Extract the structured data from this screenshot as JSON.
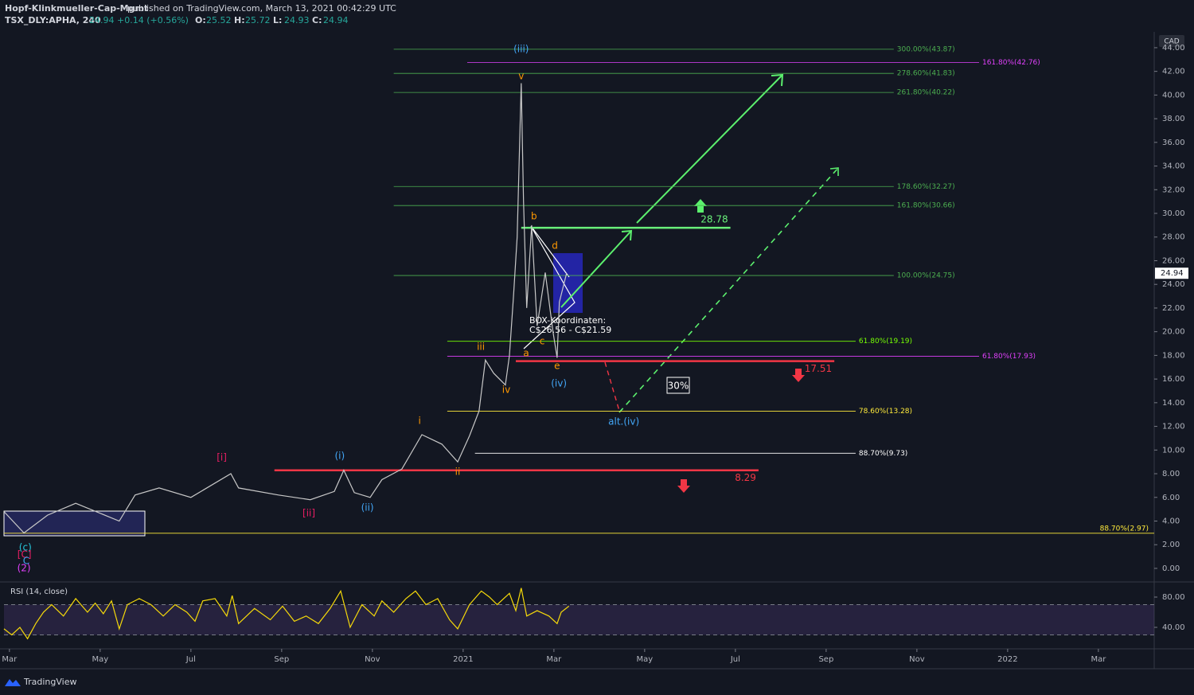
{
  "header": {
    "publisher": "Hopf-Klinkmueller-Cap-Mgmt",
    "published": "published on TradingView.com, March 13, 2021 00:42:29 UTC",
    "ticker": "TSX_DLY:APHA, 240",
    "quote": "24.94 +0.14 (+0.56%)",
    "ohlc": [
      {
        "key": "O:",
        "value": "25.52"
      },
      {
        "key": "H:",
        "value": "25.72"
      },
      {
        "key": "L:",
        "value": "24.93"
      },
      {
        "key": "C:",
        "value": "24.94"
      }
    ]
  },
  "footer": {
    "brand": "TradingView"
  },
  "chart_data": [
    {
      "type": "line",
      "currency": "CAD",
      "last_price": 24.94,
      "xlim": [
        -0.12,
        25.23
      ],
      "ylim": [
        -1.08,
        45.34
      ],
      "yticks": [
        {
          "value": 0,
          "label": "0.00"
        },
        {
          "value": 2,
          "label": "2.00"
        },
        {
          "value": 4,
          "label": "4.00"
        },
        {
          "value": 6,
          "label": "6.00"
        },
        {
          "value": 8,
          "label": "8.00"
        },
        {
          "value": 10,
          "label": "10.00"
        },
        {
          "value": 12,
          "label": "12.00"
        },
        {
          "value": 14,
          "label": "14.00"
        },
        {
          "value": 16,
          "label": "16.00"
        },
        {
          "value": 18,
          "label": "18.00"
        },
        {
          "value": 20,
          "label": "20.00"
        },
        {
          "value": 22,
          "label": "22.00"
        },
        {
          "value": 24,
          "label": "24.00"
        },
        {
          "value": 26,
          "label": "26.00"
        },
        {
          "value": 28,
          "label": "28.00"
        },
        {
          "value": 30,
          "label": "30.00"
        },
        {
          "value": 32,
          "label": "32.00"
        },
        {
          "value": 34,
          "label": "34.00"
        },
        {
          "value": 36,
          "label": "36.00"
        },
        {
          "value": 38,
          "label": "38.00"
        },
        {
          "value": 40,
          "label": "40.00"
        },
        {
          "value": 42,
          "label": "42.00"
        },
        {
          "value": 44,
          "label": "44.00"
        }
      ],
      "series": [
        {
          "name": "APHA",
          "color": "#c8c8c8",
          "x": [
            -0.12,
            0.32,
            0.84,
            1.46,
            2.42,
            2.77,
            3.3,
            4.0,
            4.88,
            5.05,
            5.93,
            6.63,
            7.16,
            7.37,
            7.6,
            7.95,
            8.21,
            8.65,
            9.09,
            9.53,
            9.88,
            10.14,
            10.35,
            10.49,
            10.67,
            10.93,
            11.02,
            11.11,
            11.19,
            11.28,
            11.33,
            11.4,
            11.51,
            11.63,
            11.81,
            11.98,
            12.07,
            12.12,
            12.28
          ],
          "values": [
            4.8,
            3.0,
            4.5,
            5.5,
            4.0,
            6.2,
            6.8,
            6.0,
            8.0,
            6.8,
            6.2,
            5.8,
            6.5,
            8.3,
            6.4,
            6.0,
            7.5,
            8.4,
            11.3,
            10.5,
            9.0,
            11.2,
            13.3,
            17.6,
            16.5,
            15.5,
            18.0,
            23.0,
            28.0,
            41.0,
            31.0,
            22.0,
            29.0,
            20.5,
            25.0,
            20.0,
            17.8,
            22.5,
            24.94
          ]
        }
      ],
      "levels": [
        {
          "value": 43.87,
          "label": "300.00%(43.87)",
          "color": "#4caf50",
          "x": [
            8.47,
            19.49
          ],
          "kind": "fib"
        },
        {
          "value": 42.76,
          "label": "161.80%(42.76)",
          "color": "#e040fb",
          "x": [
            10.09,
            21.37
          ],
          "kind": "fib"
        },
        {
          "value": 41.83,
          "label": "278.60%(41.83)",
          "color": "#4caf50",
          "x": [
            8.47,
            19.49
          ],
          "kind": "fib"
        },
        {
          "value": 40.22,
          "label": "261.80%(40.22)",
          "color": "#4caf50",
          "x": [
            8.47,
            19.49
          ],
          "kind": "fib"
        },
        {
          "value": 32.27,
          "label": "178.60%(32.27)",
          "color": "#4caf50",
          "x": [
            8.47,
            19.49
          ],
          "kind": "fib"
        },
        {
          "value": 30.66,
          "label": "161.80%(30.66)",
          "color": "#4caf50",
          "x": [
            8.47,
            19.49
          ],
          "kind": "fib"
        },
        {
          "value": 24.75,
          "label": "100.00%(24.75)",
          "color": "#4caf50",
          "x": [
            8.47,
            19.49
          ],
          "kind": "fib"
        },
        {
          "value": 19.19,
          "label": "61.80%(19.19)",
          "color": "#76ff03",
          "x": [
            9.65,
            18.65
          ],
          "kind": "fib"
        },
        {
          "value": 17.93,
          "label": "61.80%(17.93)",
          "color": "#e040fb",
          "x": [
            9.65,
            21.37
          ],
          "kind": "fib"
        },
        {
          "value": 13.28,
          "label": "78.60%(13.28)",
          "color": "#ffeb3b",
          "x": [
            9.65,
            18.65
          ],
          "kind": "fib"
        },
        {
          "value": 9.73,
          "label": "88.70%(9.73)",
          "color": "#ffffff",
          "x": [
            10.26,
            18.65
          ],
          "kind": "fib"
        },
        {
          "value": 2.97,
          "label": "88.70%(2.97)",
          "color": "#ffeb3b",
          "x": [
            -0.12,
            25.23
          ],
          "kind": "fib"
        },
        {
          "value": 28.78,
          "label": "28.78",
          "color": "#69f07a",
          "x": [
            11.28,
            15.89
          ],
          "kind": "target"
        },
        {
          "value": 17.51,
          "label": "17.51",
          "color": "#f23645",
          "x": [
            11.16,
            18.18
          ],
          "kind": "stop"
        },
        {
          "value": 8.29,
          "label": "8.29",
          "color": "#f23645",
          "x": [
            5.84,
            16.51
          ],
          "kind": "stop"
        }
      ],
      "wave_labels": [
        {
          "text": "(iii)",
          "x": 11.28,
          "y": 43.86,
          "color": "#42a5f5"
        },
        {
          "text": "v",
          "x": 11.28,
          "y": 41.58,
          "color": "#ff9800"
        },
        {
          "text": "b",
          "x": 11.56,
          "y": 29.74,
          "color": "#ff9800"
        },
        {
          "text": "d",
          "x": 12.02,
          "y": 27.25,
          "color": "#ff9800"
        },
        {
          "text": "a",
          "x": 11.39,
          "y": 18.16,
          "color": "#ff9800"
        },
        {
          "text": "c",
          "x": 11.74,
          "y": 19.17,
          "color": "#ff9800"
        },
        {
          "text": "e",
          "x": 12.07,
          "y": 17.09,
          "color": "#ff9800"
        },
        {
          "text": "(iv)",
          "x": 12.11,
          "y": 15.61,
          "color": "#42a5f5"
        },
        {
          "text": "iii",
          "x": 10.39,
          "y": 18.7,
          "color": "#ff9800"
        },
        {
          "text": "iv",
          "x": 10.95,
          "y": 15.07,
          "color": "#ff9800"
        },
        {
          "text": "i",
          "x": 9.04,
          "y": 12.45,
          "color": "#ff9800"
        },
        {
          "text": "ii",
          "x": 9.88,
          "y": 8.14,
          "color": "#ff9800"
        },
        {
          "text": "[i]",
          "x": 4.68,
          "y": 9.35,
          "color": "#e91e63"
        },
        {
          "text": "[ii]",
          "x": 6.6,
          "y": 4.64,
          "color": "#e91e63"
        },
        {
          "text": "(i)",
          "x": 7.28,
          "y": 9.49,
          "color": "#42a5f5"
        },
        {
          "text": "(ii)",
          "x": 7.89,
          "y": 5.11,
          "color": "#42a5f5"
        },
        {
          "text": "alt.(iv)",
          "x": 13.54,
          "y": 12.38,
          "color": "#42a5f5"
        },
        {
          "text": "(c)",
          "x": 0.35,
          "y": 1.75,
          "color": "#26c6da"
        },
        {
          "text": "[C]",
          "x": 0.33,
          "y": 1.14,
          "color": "#e91e63"
        },
        {
          "text": "C",
          "x": 0.37,
          "y": 0.61,
          "color": "#42a5f5"
        },
        {
          "text": "(2)",
          "x": 0.32,
          "y": 0,
          "color": "#e040fb"
        }
      ],
      "notes": {
        "box_title": "BOX-Koordinaten:",
        "box_range": "C$26.56 - C$21.59",
        "probability": "30%"
      }
    },
    {
      "type": "line",
      "title": "RSI (14, close)",
      "xlim": [
        -0.12,
        25.23
      ],
      "ylim": [
        11.6,
        97.9
      ],
      "yticks": [
        {
          "value": 80,
          "label": "80.00"
        },
        {
          "value": 40,
          "label": "40.00"
        }
      ],
      "band": [
        30,
        70
      ],
      "band_color": "#7e57c2",
      "xticks": [
        {
          "value": 0,
          "label": "Mar"
        },
        {
          "value": 2,
          "label": "May"
        },
        {
          "value": 4,
          "label": "Jul"
        },
        {
          "value": 6,
          "label": "Sep"
        },
        {
          "value": 8,
          "label": "Nov"
        },
        {
          "value": 10,
          "label": "2021"
        },
        {
          "value": 12,
          "label": "Mar"
        },
        {
          "value": 14,
          "label": "May"
        },
        {
          "value": 16,
          "label": "Jul"
        },
        {
          "value": 18,
          "label": "Sep"
        },
        {
          "value": 20,
          "label": "Nov"
        },
        {
          "value": 22,
          "label": "2022"
        },
        {
          "value": 24,
          "label": "Mar"
        }
      ],
      "series": [
        {
          "name": "RSI",
          "color": "#f5d90a",
          "x": [
            -0.12,
            0.05,
            0.23,
            0.4,
            0.58,
            0.75,
            0.93,
            1.19,
            1.46,
            1.72,
            1.89,
            2.07,
            2.25,
            2.42,
            2.6,
            2.86,
            3.12,
            3.39,
            3.65,
            3.91,
            4.09,
            4.26,
            4.53,
            4.79,
            4.91,
            5.05,
            5.4,
            5.75,
            6.02,
            6.28,
            6.54,
            6.81,
            7.07,
            7.3,
            7.51,
            7.77,
            8.04,
            8.21,
            8.47,
            8.74,
            8.95,
            9.18,
            9.44,
            9.7,
            9.88,
            10.14,
            10.4,
            10.58,
            10.75,
            11.02,
            11.16,
            11.28,
            11.4,
            11.63,
            11.89,
            12.07,
            12.16,
            12.33
          ],
          "values": [
            38,
            30,
            40,
            25,
            45,
            60,
            70,
            55,
            78,
            60,
            72,
            58,
            75,
            38,
            70,
            78,
            70,
            55,
            70,
            60,
            48,
            75,
            78,
            55,
            82,
            45,
            65,
            50,
            68,
            48,
            55,
            45,
            65,
            88,
            40,
            70,
            55,
            75,
            60,
            78,
            88,
            70,
            78,
            50,
            38,
            70,
            88,
            80,
            70,
            85,
            62,
            92,
            55,
            62,
            55,
            45,
            60,
            68
          ]
        }
      ]
    }
  ]
}
